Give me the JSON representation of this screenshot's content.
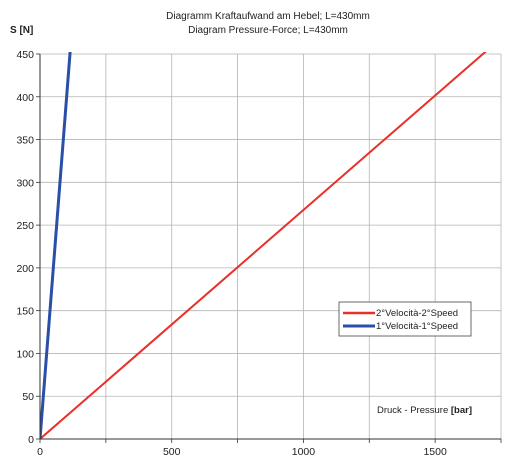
{
  "chart_data": {
    "type": "line",
    "title": "Diagramm Kraftaufwand am Hebel; L=430mm",
    "subtitle": "Diagram Pressure-Force; L=430mm",
    "xlabel_text": "Druck - Pressure ",
    "xlabel_unit": "[bar]",
    "ylabel": "S [N]",
    "xlim": [
      0,
      1750
    ],
    "ylim": [
      0,
      450
    ],
    "x_ticks": [
      0,
      500,
      1000,
      1500
    ],
    "x_gridlines": [
      0,
      250,
      500,
      750,
      1000,
      1250,
      1500,
      1750
    ],
    "y_ticks": [
      0,
      50,
      100,
      150,
      200,
      250,
      300,
      350,
      400,
      450
    ],
    "grid": true,
    "legend_position": "center-right",
    "series": [
      {
        "name": "2°Velocità-2°Speed",
        "color": "#e8302a",
        "x": [
          0,
          1700
        ],
        "y": [
          0,
          455
        ]
      },
      {
        "name": "1°Velocità-1°Speed",
        "color": "#2a4fa8",
        "x": [
          0,
          115
        ],
        "y": [
          0,
          455
        ]
      }
    ]
  }
}
